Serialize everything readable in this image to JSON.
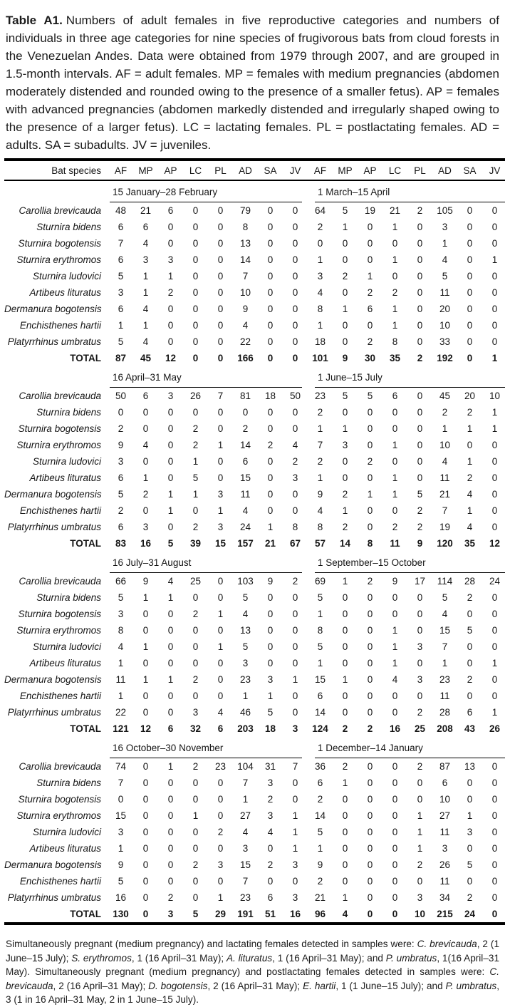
{
  "caption": {
    "label": "Table A1.",
    "text": "Numbers of adult females in five reproductive categories and numbers of individuals in three age categories for nine species of frugivorous bats from cloud forests in the Venezuelan Andes.  Data were obtained from 1979 through 2007, and are grouped in 1.5-month intervals.  AF = adult females.  MP = females with medium pregnancies (abdomen moderately distended and rounded owing to the presence of a smaller fetus).  AP = females with advanced pregnancies (abdomen markedly distended and irregularly shaped owing to the presence of a larger fetus).  LC = lactating females.  PL = postlactating females.  AD = adults.  SA = subadults.  JV = juveniles."
  },
  "table": {
    "species_header": "Bat species",
    "column_headers": [
      "AF",
      "MP",
      "AP",
      "LC",
      "PL",
      "AD",
      "SA",
      "JV",
      "AF",
      "MP",
      "AP",
      "LC",
      "PL",
      "AD",
      "SA",
      "JV"
    ],
    "total_label": "TOTAL",
    "sections": [
      {
        "period_left": "15 January–28 February",
        "period_right": "1 March–15 April",
        "rows": [
          {
            "species": "Carollia brevicauda",
            "values": [
              48,
              21,
              6,
              0,
              0,
              79,
              0,
              0,
              64,
              5,
              19,
              21,
              2,
              105,
              0,
              0
            ]
          },
          {
            "species": "Sturnira bidens",
            "values": [
              6,
              6,
              0,
              0,
              0,
              8,
              0,
              0,
              2,
              1,
              0,
              1,
              0,
              3,
              0,
              0
            ]
          },
          {
            "species": "Sturnira bogotensis",
            "values": [
              7,
              4,
              0,
              0,
              0,
              13,
              0,
              0,
              0,
              0,
              0,
              0,
              0,
              1,
              0,
              0
            ]
          },
          {
            "species": "Sturnira erythromos",
            "values": [
              6,
              3,
              3,
              0,
              0,
              14,
              0,
              0,
              1,
              0,
              0,
              1,
              0,
              4,
              0,
              1
            ]
          },
          {
            "species": "Sturnira ludovici",
            "values": [
              5,
              1,
              1,
              0,
              0,
              7,
              0,
              0,
              3,
              2,
              1,
              0,
              0,
              5,
              0,
              0
            ]
          },
          {
            "species": "Artibeus lituratus",
            "values": [
              3,
              1,
              2,
              0,
              0,
              10,
              0,
              0,
              4,
              0,
              2,
              2,
              0,
              11,
              0,
              0
            ]
          },
          {
            "species": "Dermanura bogotensis",
            "values": [
              6,
              4,
              0,
              0,
              0,
              9,
              0,
              0,
              8,
              1,
              6,
              1,
              0,
              20,
              0,
              0
            ]
          },
          {
            "species": "Enchisthenes hartii",
            "values": [
              1,
              1,
              0,
              0,
              0,
              4,
              0,
              0,
              1,
              0,
              0,
              1,
              0,
              10,
              0,
              0
            ]
          },
          {
            "species": "Platyrrhinus umbratus",
            "values": [
              5,
              4,
              0,
              0,
              0,
              22,
              0,
              0,
              18,
              0,
              2,
              8,
              0,
              33,
              0,
              0
            ]
          }
        ],
        "total": [
          87,
          45,
          12,
          0,
          0,
          166,
          0,
          0,
          101,
          9,
          30,
          35,
          2,
          192,
          0,
          1
        ]
      },
      {
        "period_left": "16 April–31 May",
        "period_right": "1 June–15 July",
        "rows": [
          {
            "species": "Carollia brevicauda",
            "values": [
              50,
              6,
              3,
              26,
              7,
              81,
              18,
              50,
              23,
              5,
              5,
              6,
              0,
              45,
              20,
              10
            ]
          },
          {
            "species": "Sturnira bidens",
            "values": [
              0,
              0,
              0,
              0,
              0,
              0,
              0,
              0,
              2,
              0,
              0,
              0,
              0,
              2,
              2,
              1
            ]
          },
          {
            "species": "Sturnira bogotensis",
            "values": [
              2,
              0,
              0,
              2,
              0,
              2,
              0,
              0,
              1,
              1,
              0,
              0,
              0,
              1,
              1,
              1
            ]
          },
          {
            "species": "Sturnira erythromos",
            "values": [
              9,
              4,
              0,
              2,
              1,
              14,
              2,
              4,
              7,
              3,
              0,
              1,
              0,
              10,
              0,
              0
            ]
          },
          {
            "species": "Sturnira ludovici",
            "values": [
              3,
              0,
              0,
              1,
              0,
              6,
              0,
              2,
              2,
              0,
              2,
              0,
              0,
              4,
              1,
              0
            ]
          },
          {
            "species": "Artibeus lituratus",
            "values": [
              6,
              1,
              0,
              5,
              0,
              15,
              0,
              3,
              1,
              0,
              0,
              1,
              0,
              11,
              2,
              0
            ]
          },
          {
            "species": "Dermanura bogotensis",
            "values": [
              5,
              2,
              1,
              1,
              3,
              11,
              0,
              0,
              9,
              2,
              1,
              1,
              5,
              21,
              4,
              0
            ]
          },
          {
            "species": "Enchisthenes hartii",
            "values": [
              2,
              0,
              1,
              0,
              1,
              4,
              0,
              0,
              4,
              1,
              0,
              0,
              2,
              7,
              1,
              0
            ]
          },
          {
            "species": "Platyrrhinus umbratus",
            "values": [
              6,
              3,
              0,
              2,
              3,
              24,
              1,
              8,
              8,
              2,
              0,
              2,
              2,
              19,
              4,
              0
            ]
          }
        ],
        "total": [
          83,
          16,
          5,
          39,
          15,
          157,
          21,
          67,
          57,
          14,
          8,
          11,
          9,
          120,
          35,
          12
        ]
      },
      {
        "period_left": "16 July–31 August",
        "period_right": "1 September–15 October",
        "rows": [
          {
            "species": "Carollia brevicauda",
            "values": [
              66,
              9,
              4,
              25,
              0,
              103,
              9,
              2,
              69,
              1,
              2,
              9,
              17,
              114,
              28,
              24
            ]
          },
          {
            "species": "Sturnira bidens",
            "values": [
              5,
              1,
              1,
              0,
              0,
              5,
              0,
              0,
              5,
              0,
              0,
              0,
              0,
              5,
              2,
              0
            ]
          },
          {
            "species": "Sturnira bogotensis",
            "values": [
              3,
              0,
              0,
              2,
              1,
              4,
              0,
              0,
              1,
              0,
              0,
              0,
              0,
              4,
              0,
              0
            ]
          },
          {
            "species": "Sturnira erythromos",
            "values": [
              8,
              0,
              0,
              0,
              0,
              13,
              0,
              0,
              8,
              0,
              0,
              1,
              0,
              15,
              5,
              0
            ]
          },
          {
            "species": "Sturnira ludovici",
            "values": [
              4,
              1,
              0,
              0,
              1,
              5,
              0,
              0,
              5,
              0,
              0,
              1,
              3,
              7,
              0,
              0
            ]
          },
          {
            "species": "Artibeus lituratus",
            "values": [
              1,
              0,
              0,
              0,
              0,
              3,
              0,
              0,
              1,
              0,
              0,
              1,
              0,
              1,
              0,
              1
            ]
          },
          {
            "species": "Dermanura bogotensis",
            "values": [
              11,
              1,
              1,
              2,
              0,
              23,
              3,
              1,
              15,
              1,
              0,
              4,
              3,
              23,
              2,
              0
            ]
          },
          {
            "species": "Enchisthenes hartii",
            "values": [
              1,
              0,
              0,
              0,
              0,
              1,
              1,
              0,
              6,
              0,
              0,
              0,
              0,
              11,
              0,
              0
            ]
          },
          {
            "species": "Platyrrhinus umbratus",
            "values": [
              22,
              0,
              0,
              3,
              4,
              46,
              5,
              0,
              14,
              0,
              0,
              0,
              2,
              28,
              6,
              1
            ]
          }
        ],
        "total": [
          121,
          12,
          6,
          32,
          6,
          203,
          18,
          3,
          124,
          2,
          2,
          16,
          25,
          208,
          43,
          26
        ]
      },
      {
        "period_left": "16 October–30 November",
        "period_right": "1 December–14 January",
        "rows": [
          {
            "species": "Carollia brevicauda",
            "values": [
              74,
              0,
              1,
              2,
              23,
              104,
              31,
              7,
              36,
              2,
              0,
              0,
              2,
              87,
              13,
              0
            ]
          },
          {
            "species": "Sturnira bidens",
            "values": [
              7,
              0,
              0,
              0,
              0,
              7,
              3,
              0,
              6,
              1,
              0,
              0,
              0,
              6,
              0,
              0
            ]
          },
          {
            "species": "Sturnira bogotensis",
            "values": [
              0,
              0,
              0,
              0,
              0,
              1,
              2,
              0,
              2,
              0,
              0,
              0,
              0,
              10,
              0,
              0
            ]
          },
          {
            "species": "Sturnira erythromos",
            "values": [
              15,
              0,
              0,
              1,
              0,
              27,
              3,
              1,
              14,
              0,
              0,
              0,
              1,
              27,
              1,
              0
            ]
          },
          {
            "species": "Sturnira ludovici",
            "values": [
              3,
              0,
              0,
              0,
              2,
              4,
              4,
              1,
              5,
              0,
              0,
              0,
              1,
              11,
              3,
              0
            ]
          },
          {
            "species": "Artibeus lituratus",
            "values": [
              1,
              0,
              0,
              0,
              0,
              3,
              0,
              1,
              1,
              0,
              0,
              0,
              1,
              3,
              0,
              0
            ]
          },
          {
            "species": "Dermanura bogotensis",
            "values": [
              9,
              0,
              0,
              2,
              3,
              15,
              2,
              3,
              9,
              0,
              0,
              0,
              2,
              26,
              5,
              0
            ]
          },
          {
            "species": "Enchisthenes hartii",
            "values": [
              5,
              0,
              0,
              0,
              0,
              7,
              0,
              0,
              2,
              0,
              0,
              0,
              0,
              11,
              0,
              0
            ]
          },
          {
            "species": "Platyrrhinus umbratus",
            "values": [
              16,
              0,
              2,
              0,
              1,
              23,
              6,
              3,
              21,
              1,
              0,
              0,
              3,
              34,
              2,
              0
            ]
          }
        ],
        "total": [
          130,
          0,
          3,
          5,
          29,
          191,
          51,
          16,
          96,
          4,
          0,
          0,
          10,
          215,
          24,
          0
        ]
      }
    ]
  },
  "footnote": {
    "segments": [
      {
        "t": "Simultaneously pregnant (medium pregnancy) and lactating females detected in samples were: "
      },
      {
        "t": "C. brevicauda",
        "i": true
      },
      {
        "t": ", 2 (1 June–15 July); "
      },
      {
        "t": "S. erythromos",
        "i": true
      },
      {
        "t": ", 1 (16 April–31 May); "
      },
      {
        "t": "A. lituratus",
        "i": true
      },
      {
        "t": ", 1 (16 April–31 May); and "
      },
      {
        "t": "P. umbratus",
        "i": true
      },
      {
        "t": ", 1(16 April–31 May). Simultaneously pregnant (medium pregnancy) and postlactating females detected in samples were: "
      },
      {
        "t": "C. brevicauda",
        "i": true
      },
      {
        "t": ", 2 (16 April–31 May); "
      },
      {
        "t": "D. bogotensis",
        "i": true
      },
      {
        "t": ", 2 (16 April–31 May); "
      },
      {
        "t": "E. hartii",
        "i": true
      },
      {
        "t": ", 1 (1 June–15 July); and "
      },
      {
        "t": "P. umbratus",
        "i": true
      },
      {
        "t": ", 3 (1 in 16 April–31 May, 2 in 1 June–15 July)."
      }
    ]
  }
}
